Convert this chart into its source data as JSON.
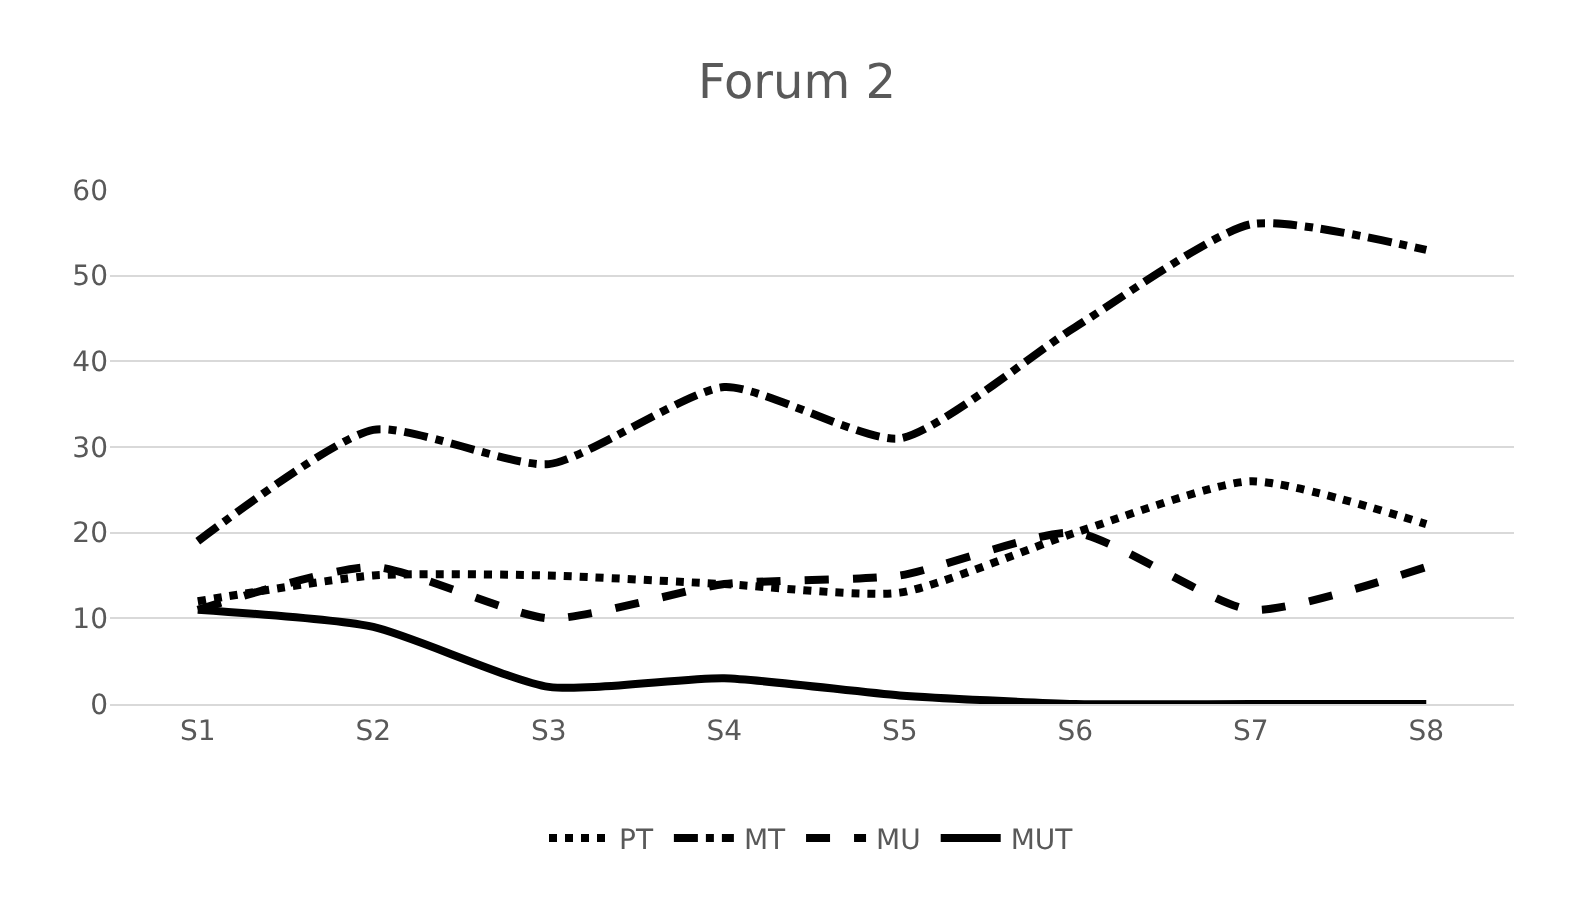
{
  "chart_data": {
    "type": "line",
    "title": "Forum 2",
    "categories": [
      "S1",
      "S2",
      "S3",
      "S4",
      "S5",
      "S6",
      "S7",
      "S8"
    ],
    "series": [
      {
        "name": "PT",
        "color": "#000000",
        "line_style": "dotted",
        "values": [
          12,
          15,
          15,
          14,
          13,
          20,
          26,
          21
        ]
      },
      {
        "name": "MT",
        "color": "#000000",
        "line_style": "dashdot",
        "values": [
          19,
          32,
          28,
          37,
          31,
          44,
          56,
          53
        ]
      },
      {
        "name": "MU",
        "color": "#000000",
        "line_style": "dashed",
        "values": [
          11,
          16,
          10,
          14,
          15,
          20,
          11,
          16
        ]
      },
      {
        "name": "MUT",
        "color": "#000000",
        "line_style": "solid",
        "values": [
          11,
          9,
          2,
          3,
          1,
          0,
          0,
          0
        ]
      }
    ],
    "ylim": [
      0,
      60
    ],
    "yticks": [
      0,
      10,
      20,
      30,
      40,
      50,
      60
    ],
    "grid": "y",
    "legend": "bottom",
    "marker": "none"
  }
}
